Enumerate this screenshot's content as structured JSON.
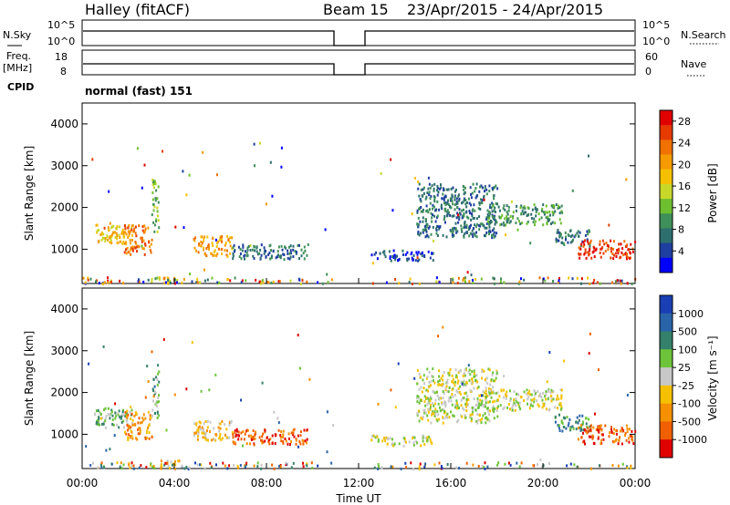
{
  "header": {
    "station": "Halley (fitACF)",
    "beam": "Beam 15",
    "dates": "23/Apr/2015 - 24/Apr/2015",
    "cpid_label": "CPID",
    "cpid_value": "normal (fast) 151"
  },
  "summary_panels": {
    "nsky": {
      "left_label": "N.Sky",
      "left_ticks": [
        "10^5",
        "10^0"
      ],
      "right_label": "N.Search",
      "right_ticks": [
        "10^5",
        "10^0"
      ]
    },
    "freq": {
      "left_label_1": "Freq.",
      "left_label_2": "[MHz]",
      "left_ticks": [
        "18",
        "8"
      ],
      "right_label": "Nave",
      "right_ticks": [
        "60",
        "0"
      ]
    }
  },
  "chart_data": [
    {
      "type": "heatmap",
      "title": "",
      "xlabel": "",
      "ylabel": "Slant Range [km]",
      "ylim": [
        180,
        4500
      ],
      "xlim": [
        0,
        24
      ],
      "yticks": [
        "1000",
        "2000",
        "3000",
        "4000"
      ],
      "colorbar": {
        "label": "Power [dB]",
        "ticks": [
          "4",
          "8",
          "12",
          "16",
          "20",
          "24",
          "28"
        ],
        "range": [
          0,
          30
        ],
        "colors": [
          "#0000ff",
          "#1f3fa0",
          "#2d6e6e",
          "#3f8f5a",
          "#6dbf2f",
          "#c8d82a",
          "#f5c000",
          "#f59a00",
          "#f07000",
          "#e63a00",
          "#e00000"
        ]
      }
    },
    {
      "type": "heatmap",
      "title": "",
      "xlabel": "Time UT",
      "ylabel": "Slant Range [km]",
      "ylim": [
        180,
        4500
      ],
      "xlim": [
        0,
        24
      ],
      "yticks": [
        "1000",
        "2000",
        "3000",
        "4000"
      ],
      "xticks": [
        "00:00",
        "04:00",
        "08:00",
        "12:00",
        "16:00",
        "20:00",
        "00:00"
      ],
      "colorbar": {
        "label": "Velocity [m s⁻¹]",
        "ticks": [
          "1000",
          "500",
          "100",
          "25",
          "-25",
          "-100",
          "-500",
          "-1000"
        ],
        "colors": [
          "#1a3fb5",
          "#2a64a8",
          "#35806a",
          "#6dc43a",
          "#c8c8c8",
          "#f5c000",
          "#f59000",
          "#f06000",
          "#e00000"
        ]
      }
    }
  ],
  "scatter_regions": [
    {
      "t0": 0.5,
      "t1": 2.2,
      "r0": 1150,
      "r1": 1650,
      "pcol": 6,
      "vcol": 3
    },
    {
      "t0": 1.8,
      "t1": 3.0,
      "r0": 900,
      "r1": 1600,
      "pcol": 8,
      "vcol": 6
    },
    {
      "t0": 3.0,
      "t1": 3.3,
      "r0": 1400,
      "r1": 2700,
      "pcol": 4,
      "vcol": 3
    },
    {
      "t0": 3.3,
      "t1": 4.2,
      "r0": 200,
      "r1": 400,
      "pcol": 6,
      "vcol": 5
    },
    {
      "t0": 4.8,
      "t1": 6.5,
      "r0": 850,
      "r1": 1350,
      "pcol": 7,
      "vcol": 5
    },
    {
      "t0": 6.5,
      "t1": 9.8,
      "r0": 780,
      "r1": 1150,
      "pcol": 2,
      "vcol": 7
    },
    {
      "t0": 12.5,
      "t1": 15.2,
      "r0": 750,
      "r1": 1000,
      "pcol": 1,
      "vcol": 4
    },
    {
      "t0": 14.5,
      "t1": 18.0,
      "r0": 1300,
      "r1": 2600,
      "pcol": 2,
      "vcol": 4
    },
    {
      "t0": 17.5,
      "t1": 20.8,
      "r0": 1600,
      "r1": 2100,
      "pcol": 3,
      "vcol": 4
    },
    {
      "t0": 20.5,
      "t1": 22.0,
      "r0": 1100,
      "r1": 1500,
      "pcol": 2,
      "vcol": 2
    },
    {
      "t0": 21.5,
      "t1": 24.0,
      "r0": 800,
      "r1": 1250,
      "pcol": 9,
      "vcol": 7
    }
  ],
  "data_gap_hours": [
    10.9,
    12.5
  ]
}
